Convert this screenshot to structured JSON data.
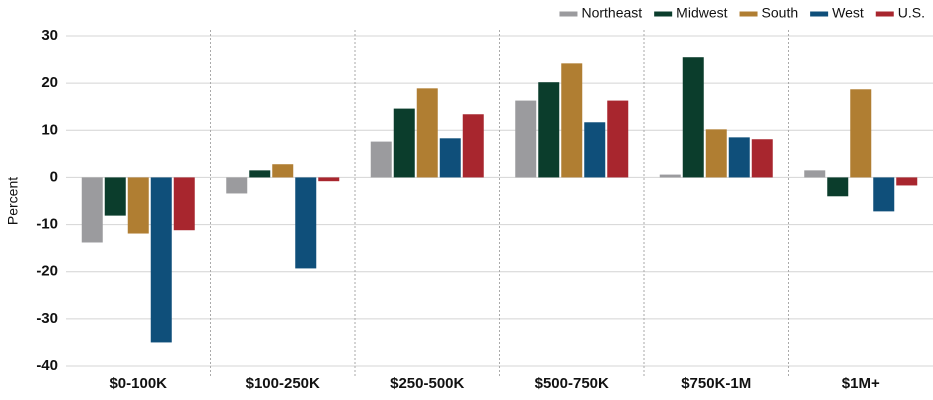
{
  "chart_data": {
    "type": "bar",
    "ylabel": "Percent",
    "categories": [
      "$0-100K",
      "$100-250K",
      "$250-500K",
      "$500-750K",
      "$750K-1M",
      "$1M+"
    ],
    "series": [
      {
        "name": "Northeast",
        "color": "#9b9b9e",
        "values": [
          -13.8,
          -3.4,
          7.6,
          16.3,
          0.6,
          1.5
        ]
      },
      {
        "name": "Midwest",
        "color": "#0b3d2c",
        "values": [
          -8.1,
          1.5,
          14.6,
          20.2,
          25.5,
          -4
        ]
      },
      {
        "name": "South",
        "color": "#b07e32",
        "values": [
          -11.9,
          2.8,
          18.9,
          24.2,
          10.2,
          18.7
        ]
      },
      {
        "name": "West",
        "color": "#0f4f7a",
        "values": [
          -35,
          -19.3,
          8.3,
          11.7,
          8.5,
          -7.2
        ]
      },
      {
        "name": "U.S.",
        "color": "#a8262e",
        "values": [
          -11.2,
          -0.8,
          13.4,
          16.3,
          8.1,
          -1.7
        ]
      }
    ],
    "ylim": [
      -40,
      30
    ],
    "yticks": [
      -40,
      -30,
      -20,
      -10,
      0,
      10,
      20,
      30
    ],
    "grid": true,
    "legend": "top-right"
  }
}
